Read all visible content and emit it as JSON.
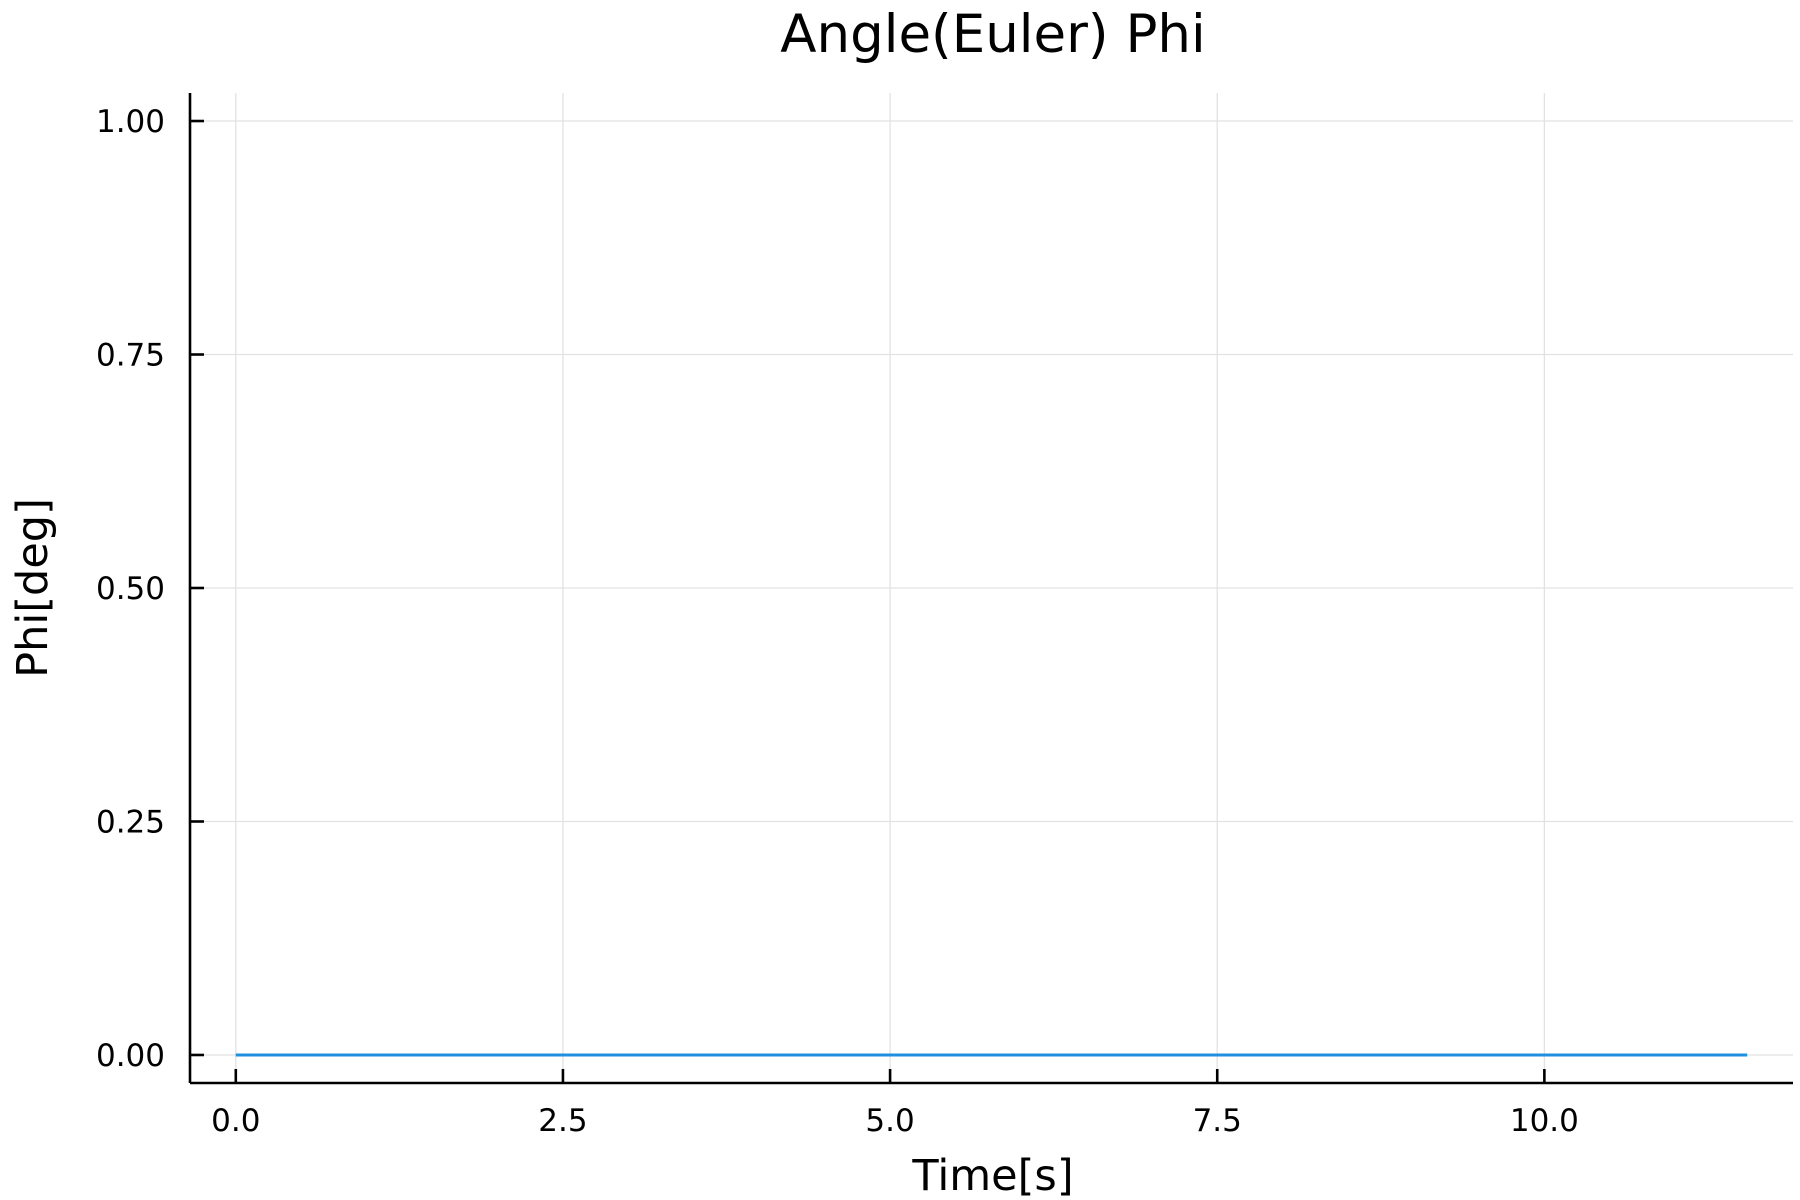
{
  "chart_data": {
    "type": "line",
    "title": "Angle(Euler) Phi",
    "xlabel": "Time[s]",
    "ylabel": "Phi[deg]",
    "xlim": [
      -0.35,
      11.9
    ],
    "ylim": [
      -0.03,
      1.03
    ],
    "xticks": [
      0.0,
      2.5,
      5.0,
      7.5,
      10.0
    ],
    "xtick_labels": [
      "0.0",
      "2.5",
      "5.0",
      "7.5",
      "10.0"
    ],
    "yticks": [
      0.0,
      0.25,
      0.5,
      0.75,
      1.0
    ],
    "ytick_labels": [
      "0.00",
      "0.25",
      "0.50",
      "0.75",
      "1.00"
    ],
    "grid": true,
    "legend": false,
    "series": [
      {
        "color": "#1f8fe0",
        "x": [
          0.0,
          11.55
        ],
        "y": [
          0.0,
          0.0
        ]
      }
    ]
  }
}
